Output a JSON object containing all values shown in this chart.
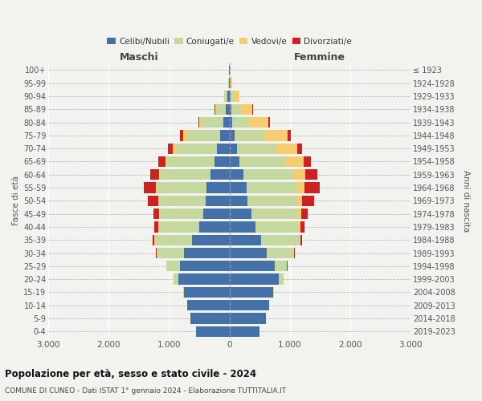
{
  "age_groups": [
    "0-4",
    "5-9",
    "10-14",
    "15-19",
    "20-24",
    "25-29",
    "30-34",
    "35-39",
    "40-44",
    "45-49",
    "50-54",
    "55-59",
    "60-64",
    "65-69",
    "70-74",
    "75-79",
    "80-84",
    "85-89",
    "90-94",
    "95-99",
    "100+"
  ],
  "birth_years": [
    "2019-2023",
    "2014-2018",
    "2009-2013",
    "2004-2008",
    "1999-2003",
    "1994-1998",
    "1989-1993",
    "1984-1988",
    "1979-1983",
    "1974-1978",
    "1969-1973",
    "1964-1968",
    "1959-1963",
    "1954-1958",
    "1949-1953",
    "1944-1948",
    "1939-1943",
    "1934-1938",
    "1929-1933",
    "1924-1928",
    "≤ 1923"
  ],
  "maschi": {
    "celibi": [
      560,
      650,
      700,
      750,
      850,
      820,
      750,
      620,
      500,
      430,
      390,
      380,
      310,
      250,
      210,
      150,
      100,
      60,
      30,
      15,
      5
    ],
    "coniugati": [
      1,
      2,
      5,
      20,
      80,
      220,
      450,
      620,
      680,
      730,
      780,
      820,
      840,
      780,
      680,
      550,
      350,
      150,
      50,
      10,
      2
    ],
    "vedovi": [
      0,
      0,
      0,
      0,
      2,
      2,
      1,
      2,
      3,
      5,
      10,
      15,
      20,
      30,
      50,
      70,
      50,
      30,
      10,
      2,
      0
    ],
    "divorziati": [
      0,
      0,
      0,
      1,
      2,
      5,
      15,
      30,
      60,
      100,
      170,
      200,
      150,
      120,
      80,
      50,
      15,
      10,
      3,
      1,
      0
    ]
  },
  "femmine": {
    "nubili": [
      500,
      600,
      660,
      720,
      820,
      750,
      620,
      530,
      430,
      370,
      300,
      290,
      230,
      170,
      130,
      80,
      50,
      30,
      20,
      10,
      5
    ],
    "coniugate": [
      1,
      1,
      3,
      15,
      70,
      200,
      440,
      630,
      720,
      780,
      820,
      830,
      820,
      760,
      640,
      500,
      280,
      150,
      60,
      15,
      2
    ],
    "vedove": [
      0,
      0,
      0,
      1,
      2,
      3,
      5,
      10,
      20,
      40,
      80,
      120,
      200,
      300,
      350,
      380,
      320,
      200,
      80,
      20,
      3
    ],
    "divorziate": [
      0,
      0,
      0,
      1,
      2,
      5,
      15,
      35,
      70,
      100,
      200,
      250,
      200,
      120,
      80,
      50,
      20,
      10,
      3,
      1,
      0
    ]
  },
  "colors": {
    "celibi": "#4472a8",
    "coniugati": "#c5d8a0",
    "vedovi": "#f5cc70",
    "divorziati": "#cc2222"
  },
  "xlim": 3000,
  "xlabel_maschi": "Maschi",
  "xlabel_femmine": "Femmine",
  "ylabel_left": "Fasce di età",
  "ylabel_right": "Anni di nascita",
  "title": "Popolazione per età, sesso e stato civile - 2024",
  "subtitle": "COMUNE DI CUNEO - Dati ISTAT 1° gennaio 2024 - Elaborazione TUTTITALIA.IT",
  "legend_labels": [
    "Celibi/Nubili",
    "Coniugati/e",
    "Vedovi/e",
    "Divorziati/e"
  ],
  "bg_color": "#f2f2ee",
  "bar_height": 0.82
}
